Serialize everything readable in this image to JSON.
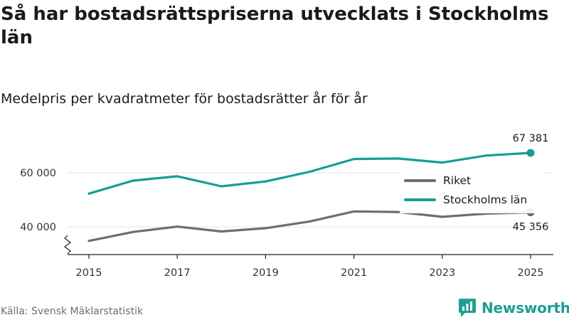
{
  "header": {
    "title": "Så har bostadsrättspriserna utvecklats i Stockholms län",
    "subtitle": "Medelpris per kvadratmeter för bostadsrätter år för år"
  },
  "footer": {
    "source": "Källa: Svensk Mäklarstatistik",
    "brand": "Newsworthy"
  },
  "colors": {
    "riket": "#6e6d74",
    "stockholm": "#139f96",
    "grid": "#e3e3e3",
    "brand": "#1f9e93"
  },
  "chart_data": {
    "type": "line",
    "title": "Så har bostadsrättspriserna utvecklats i Stockholms län",
    "subtitle": "Medelpris per kvadratmeter för bostadsrätter år för år",
    "xlabel": "",
    "ylabel": "",
    "x": [
      2015,
      2016,
      2017,
      2018,
      2019,
      2020,
      2021,
      2022,
      2023,
      2024,
      2025
    ],
    "xticks": [
      2015,
      2017,
      2019,
      2021,
      2023,
      2025
    ],
    "xtick_labels": [
      "2015",
      "2017",
      "2019",
      "2021",
      "2023",
      "2025"
    ],
    "ylim": [
      33000,
      69000
    ],
    "yticks": [
      40000,
      60000
    ],
    "ytick_labels": [
      "40 000",
      "60 000"
    ],
    "axis_break": true,
    "grid": true,
    "legend_position": "top-right",
    "series": [
      {
        "name": "Riket",
        "color": "#6e6d74",
        "values": [
          34800,
          38100,
          40100,
          38300,
          39500,
          42000,
          45700,
          45500,
          43700,
          44900,
          45356
        ],
        "end_label": "45 356"
      },
      {
        "name": "Stockholms län",
        "color": "#139f96",
        "values": [
          52300,
          57100,
          58700,
          55000,
          56800,
          60400,
          65100,
          65300,
          63800,
          66400,
          67381
        ],
        "end_label": "67 381"
      }
    ]
  }
}
